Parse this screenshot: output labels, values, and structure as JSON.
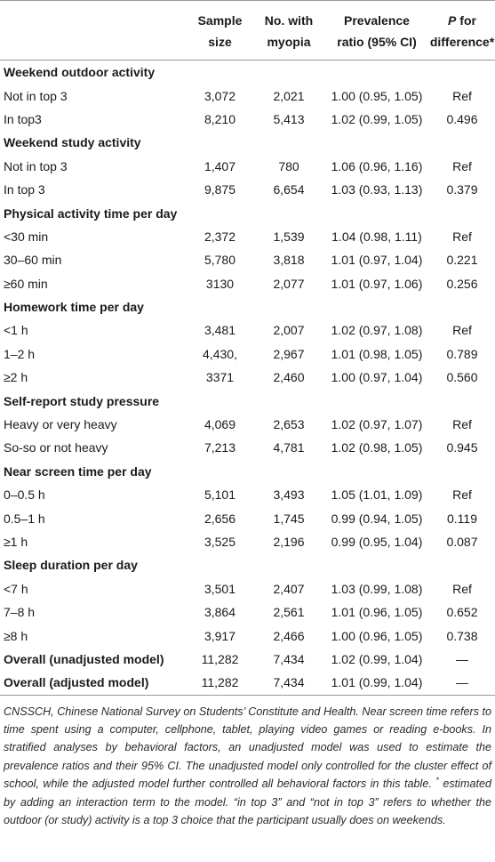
{
  "header": {
    "col1": [
      "",
      ""
    ],
    "col2": [
      "Sample",
      "size"
    ],
    "col3": [
      "No. with",
      "myopia"
    ],
    "col4": [
      "Prevalence",
      "ratio (95% CI)"
    ],
    "col5_p": "P",
    "col5_rest": " for",
    "col5_line2": "difference*"
  },
  "rows": [
    {
      "type": "group",
      "label": "Weekend outdoor activity"
    },
    {
      "type": "data",
      "label": "Not in top 3",
      "sample": "3,072",
      "myopia": "2,021",
      "pr": "1.00 (0.95, 1.05)",
      "p": "Ref"
    },
    {
      "type": "data",
      "label": "In top3",
      "sample": "8,210",
      "myopia": "5,413",
      "pr": "1.02 (0.99, 1.05)",
      "p": "0.496"
    },
    {
      "type": "group",
      "label": "Weekend study activity"
    },
    {
      "type": "data",
      "label": "Not in top 3",
      "sample": "1,407",
      "myopia": "780",
      "pr": "1.06 (0.96, 1.16)",
      "p": "Ref"
    },
    {
      "type": "data",
      "label": "In top 3",
      "sample": "9,875",
      "myopia": "6,654",
      "pr": "1.03 (0.93, 1.13)",
      "p": "0.379"
    },
    {
      "type": "group",
      "label": "Physical activity time per day"
    },
    {
      "type": "data",
      "label": "<30 min",
      "sample": "2,372",
      "myopia": "1,539",
      "pr": "1.04 (0.98, 1.11)",
      "p": "Ref"
    },
    {
      "type": "data",
      "label": "30–60 min",
      "sample": "5,780",
      "myopia": "3,818",
      "pr": "1.01 (0.97, 1.04)",
      "p": "0.221"
    },
    {
      "type": "data",
      "label": "≥60 min",
      "sample": "3130",
      "myopia": "2,077",
      "pr": "1.01 (0.97, 1.06)",
      "p": "0.256"
    },
    {
      "type": "group",
      "label": "Homework time per day"
    },
    {
      "type": "data",
      "label": "<1 h",
      "sample": "3,481",
      "myopia": "2,007",
      "pr": "1.02 (0.97, 1.08)",
      "p": "Ref"
    },
    {
      "type": "data",
      "label": "1–2 h",
      "sample": "4,430,",
      "myopia": "2,967",
      "pr": "1.01 (0.98, 1.05)",
      "p": "0.789"
    },
    {
      "type": "data",
      "label": "≥2 h",
      "sample": "3371",
      "myopia": "2,460",
      "pr": "1.00 (0.97, 1.04)",
      "p": "0.560"
    },
    {
      "type": "group",
      "label": "Self-report study pressure"
    },
    {
      "type": "data",
      "label": "Heavy or very heavy",
      "sample": "4,069",
      "myopia": "2,653",
      "pr": "1.02 (0.97, 1.07)",
      "p": "Ref"
    },
    {
      "type": "data",
      "label": "So-so or not heavy",
      "sample": "7,213",
      "myopia": "4,781",
      "pr": "1.02 (0.98, 1.05)",
      "p": "0.945"
    },
    {
      "type": "group",
      "label": "Near screen time per day"
    },
    {
      "type": "data",
      "label": "0–0.5 h",
      "sample": "5,101",
      "myopia": "3,493",
      "pr": "1.05 (1.01, 1.09)",
      "p": "Ref"
    },
    {
      "type": "data",
      "label": "0.5–1 h",
      "sample": "2,656",
      "myopia": "1,745",
      "pr": "0.99 (0.94, 1.05)",
      "p": "0.119"
    },
    {
      "type": "data",
      "label": "≥1 h",
      "sample": "3,525",
      "myopia": "2,196",
      "pr": "0.99 (0.95, 1.04)",
      "p": "0.087"
    },
    {
      "type": "group",
      "label": "Sleep duration per day"
    },
    {
      "type": "data",
      "label": "<7 h",
      "sample": "3,501",
      "myopia": "2,407",
      "pr": "1.03 (0.99, 1.08)",
      "p": "Ref"
    },
    {
      "type": "data",
      "label": "7–8 h",
      "sample": "3,864",
      "myopia": "2,561",
      "pr": "1.01 (0.96, 1.05)",
      "p": "0.652"
    },
    {
      "type": "data",
      "label": "≥8 h",
      "sample": "3,917",
      "myopia": "2,466",
      "pr": "1.00 (0.96, 1.05)",
      "p": "0.738"
    },
    {
      "type": "overall",
      "label": "Overall (unadjusted model)",
      "sample": "11,282",
      "myopia": "7,434",
      "pr": "1.02 (0.99, 1.04)",
      "p": "—"
    },
    {
      "type": "overall",
      "label": "Overall (adjusted model)",
      "sample": "11,282",
      "myopia": "7,434",
      "pr": "1.01 (0.99, 1.04)",
      "p": "—"
    }
  ],
  "footnote": {
    "part1": "CNSSCH, Chinese National Survey on Students’ Constitute and Health. Near screen time refers to time spent using a computer, cellphone, tablet, playing video games or reading e-books. In stratified analyses by behavioral factors, an unadjusted model was used to estimate the prevalence ratios and their 95% CI. The unadjusted model only controlled for the cluster effect of school, while the adjusted model further controlled all behavioral factors in this table. ",
    "star": "*",
    "part2": " estimated by adding an interaction term to the model. “in top 3” and “not in top 3” refers to whether the outdoor (or study) activity is a top 3 choice that the participant usually does on weekends."
  }
}
